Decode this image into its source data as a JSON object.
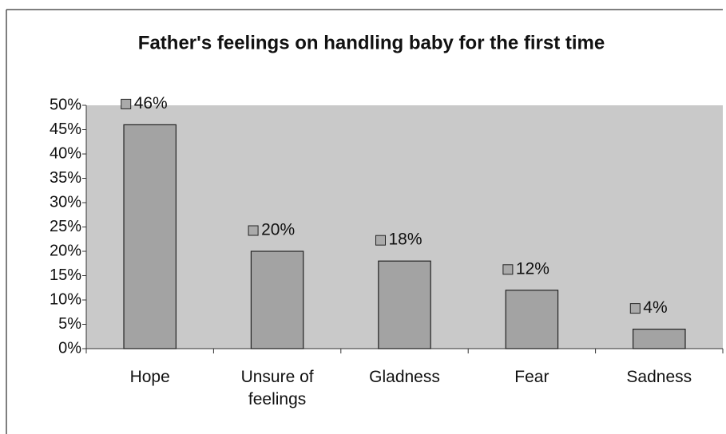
{
  "chart_data": {
    "type": "bar",
    "title": "Father's feelings on handling baby for the first time",
    "categories": [
      "Hope",
      "Unsure of feelings",
      "Gladness",
      "Fear",
      "Sadness"
    ],
    "values": [
      46,
      20,
      18,
      12,
      4
    ],
    "value_labels": [
      "46%",
      "20%",
      "18%",
      "12%",
      "4%"
    ],
    "color": "#a3a3a3",
    "ylim": [
      0,
      50
    ],
    "yticks": [
      {
        "value": 0,
        "label": "0%"
      },
      {
        "value": 5,
        "label": "5%"
      },
      {
        "value": 10,
        "label": "10%"
      },
      {
        "value": 15,
        "label": "15%"
      },
      {
        "value": 20,
        "label": "20%"
      },
      {
        "value": 25,
        "label": "25%"
      },
      {
        "value": 30,
        "label": "30%"
      },
      {
        "value": 35,
        "label": "35%"
      },
      {
        "value": 40,
        "label": "40%"
      },
      {
        "value": 45,
        "label": "45%"
      },
      {
        "value": 50,
        "label": "50%"
      }
    ],
    "grid": false
  }
}
